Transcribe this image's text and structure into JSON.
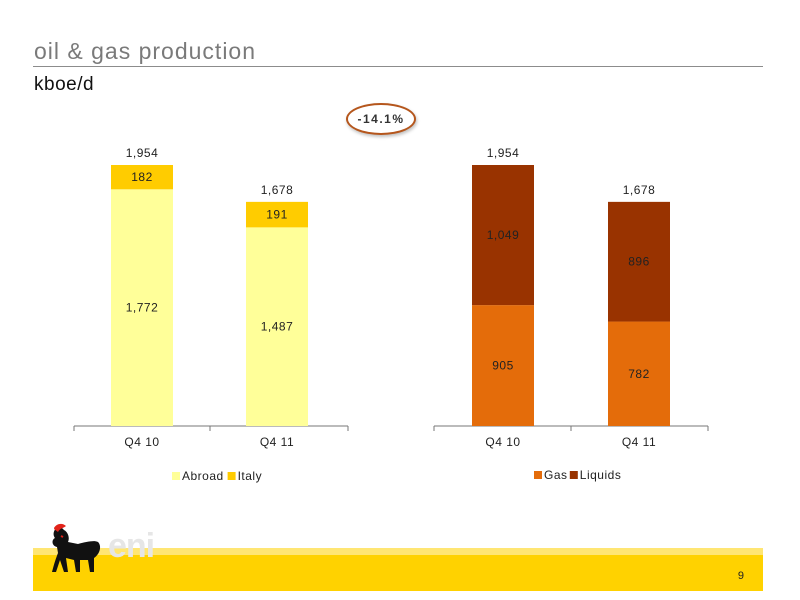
{
  "header": {
    "title": "oil & gas production",
    "unit": "kboe/d"
  },
  "change_badge": "-14.1%",
  "page_number": "9",
  "logo": {
    "text": "eni",
    "icon": "six-legged-dog-logo"
  },
  "colors": {
    "abroad": "#ffff99",
    "italy": "#ffcc00",
    "gas": "#e46c0a",
    "liquids": "#993300"
  },
  "chart_data": [
    {
      "type": "bar",
      "stacked": true,
      "categories": [
        "Q4 10",
        "Q4 11"
      ],
      "series": [
        {
          "name": "Abroad",
          "values": [
            1772,
            1487
          ],
          "labels": [
            "1,772",
            "1,487"
          ],
          "color": "#ffff99"
        },
        {
          "name": "Italy",
          "values": [
            182,
            191
          ],
          "labels": [
            "182",
            "191"
          ],
          "color": "#ffcc00"
        }
      ],
      "totals": [
        1954,
        1678
      ],
      "total_labels": [
        "1,954",
        "1,678"
      ],
      "legend": "bottom",
      "grid": false
    },
    {
      "type": "bar",
      "stacked": true,
      "categories": [
        "Q4 10",
        "Q4 11"
      ],
      "series": [
        {
          "name": "Gas",
          "values": [
            905,
            782
          ],
          "labels": [
            "905",
            "782"
          ],
          "color": "#e46c0a"
        },
        {
          "name": "Liquids",
          "values": [
            1049,
            896
          ],
          "labels": [
            "1,049",
            "896"
          ],
          "color": "#993300"
        }
      ],
      "totals": [
        1954,
        1678
      ],
      "total_labels": [
        "1,954",
        "1,678"
      ],
      "legend": "bottom",
      "grid": false
    }
  ]
}
